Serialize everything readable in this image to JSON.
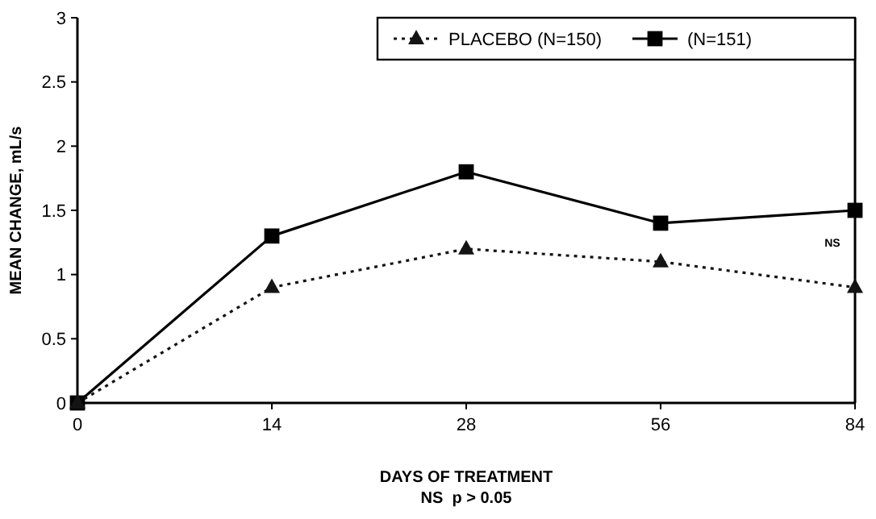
{
  "chart_data": {
    "type": "line",
    "xlabel": "DAYS OF TREATMENT",
    "ylabel": "MEAN CHANGE, mL/s",
    "categories": [
      "0",
      "14",
      "28",
      "56",
      "84"
    ],
    "series": [
      {
        "name": "PLACEBO (N=150)",
        "color": "#141414",
        "values": [
          0,
          0.9,
          1.2,
          1.1,
          0.9
        ],
        "marker": "triangle",
        "line_style": "dotted"
      },
      {
        "name": "(N=151)",
        "color": "#000000",
        "values": [
          0,
          1.3,
          1.8,
          1.4,
          1.5
        ],
        "marker": "square",
        "line_style": "solid"
      }
    ],
    "ylim": [
      0,
      3
    ],
    "yticks": [
      0,
      0.5,
      1,
      1.5,
      2,
      2.5,
      3
    ],
    "legend": "top right",
    "grid": false,
    "annotations": [
      "NS",
      "NS  p > 0.05"
    ]
  }
}
